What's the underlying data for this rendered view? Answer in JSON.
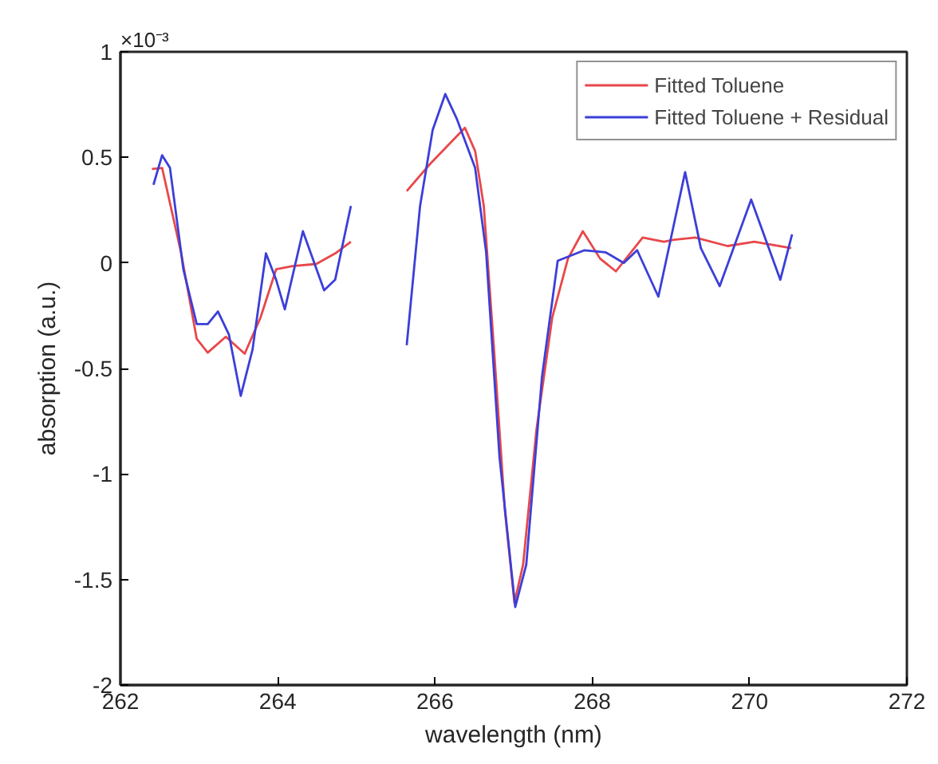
{
  "chart_data": {
    "type": "line",
    "xlabel": "wavelength (nm)",
    "ylabel": "absorption (a.u.)",
    "annotations": [
      "×10⁻³"
    ],
    "xlim": [
      262,
      272
    ],
    "xticks": [
      262,
      264,
      266,
      268,
      270,
      272
    ],
    "ylim": [
      -2,
      1
    ],
    "yticks": [
      -2,
      -1.5,
      -1,
      -0.5,
      0,
      0.5,
      1
    ],
    "grid": false,
    "legend": "top right",
    "marker": "none",
    "line_style": "solid",
    "series": [
      {
        "name": "Fitted Toluene",
        "color": "#e8474a",
        "x": [
          262.4,
          262.53,
          262.77,
          262.97,
          263.11,
          263.34,
          263.58,
          263.78,
          263.98,
          264.19,
          264.49,
          264.73,
          264.93,
          265.3,
          265.64,
          265.94,
          266.38,
          266.51,
          266.62,
          266.75,
          266.89,
          267.01,
          267.12,
          267.29,
          267.49,
          267.69,
          267.88,
          268.1,
          268.3,
          268.64,
          268.91,
          269.04,
          269.31,
          269.72,
          270.06,
          270.53
        ],
        "values": [
          0.445,
          0.45,
          0.05,
          -0.36,
          -0.425,
          -0.35,
          -0.43,
          -0.26,
          -0.03,
          -0.015,
          -0.005,
          0.045,
          0.1,
          null,
          0.34,
          0.47,
          0.64,
          0.53,
          0.27,
          -0.41,
          -1.18,
          -1.61,
          -1.43,
          -0.79,
          -0.26,
          0.02,
          0.15,
          0.02,
          -0.04,
          0.12,
          0.1,
          0.11,
          0.12,
          0.08,
          0.1,
          0.07
        ]
      },
      {
        "name": "Fitted Toluene + Residual",
        "color": "#3b3fd8",
        "x": [
          262.42,
          262.53,
          262.63,
          262.8,
          262.97,
          263.11,
          263.24,
          263.38,
          263.53,
          263.68,
          263.85,
          263.98,
          264.09,
          264.32,
          264.59,
          264.73,
          264.93,
          265.3,
          265.64,
          265.81,
          265.97,
          266.13,
          266.28,
          266.51,
          266.65,
          266.82,
          267.02,
          267.16,
          267.36,
          267.56,
          267.9,
          268.17,
          268.4,
          268.57,
          268.84,
          269.18,
          269.38,
          269.62,
          270.02,
          270.39,
          270.54
        ],
        "values": [
          0.37,
          0.51,
          0.45,
          -0.03,
          -0.29,
          -0.29,
          -0.23,
          -0.34,
          -0.63,
          -0.41,
          0.045,
          -0.08,
          -0.22,
          0.15,
          -0.13,
          -0.08,
          0.27,
          null,
          -0.39,
          0.27,
          0.63,
          0.8,
          0.68,
          0.45,
          0.05,
          -0.92,
          -1.63,
          -1.43,
          -0.54,
          0.01,
          0.06,
          0.05,
          0.0,
          0.06,
          -0.16,
          0.43,
          0.07,
          -0.11,
          0.3,
          -0.08,
          0.135
        ]
      }
    ]
  }
}
